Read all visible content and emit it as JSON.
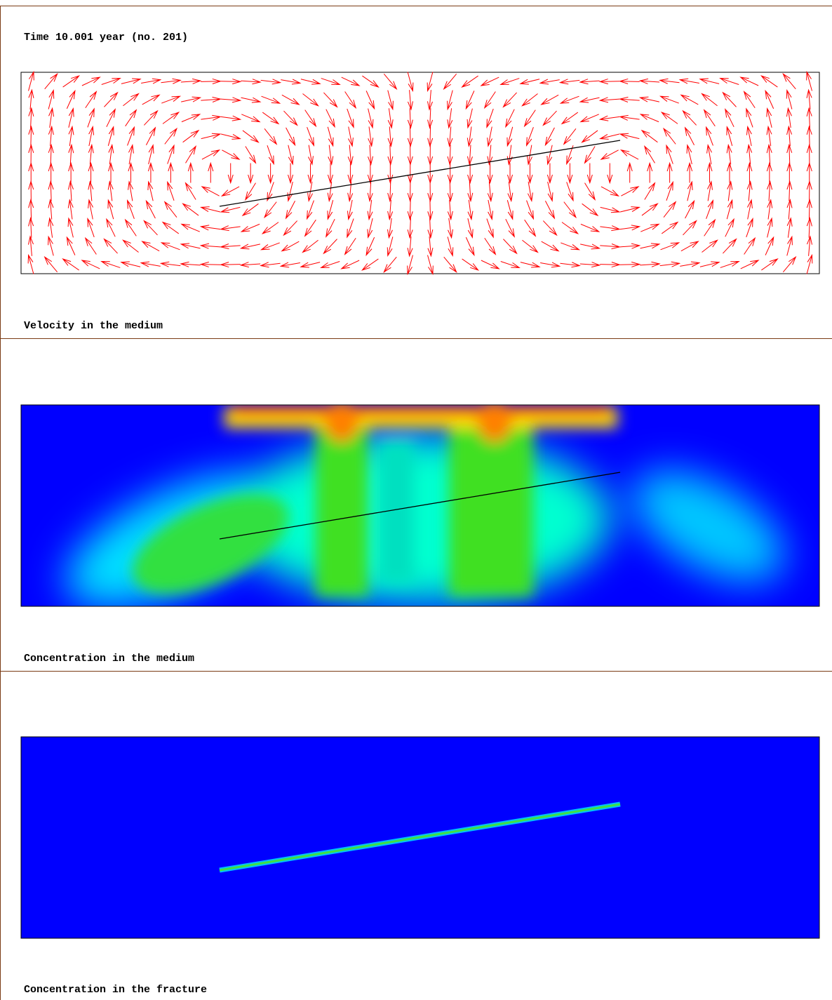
{
  "header": {
    "title": "Time 10.001 year (no. 201)"
  },
  "panels": [
    {
      "caption": "Velocity in the medium"
    },
    {
      "caption": "Concentration in the medium"
    },
    {
      "caption": "Concentration in the fracture"
    }
  ]
}
